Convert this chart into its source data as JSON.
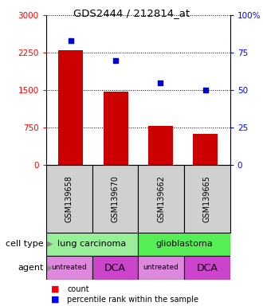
{
  "title": "GDS2444 / 212814_at",
  "samples": [
    "GSM139658",
    "GSM139670",
    "GSM139662",
    "GSM139665"
  ],
  "counts": [
    2300,
    1480,
    780,
    620
  ],
  "percentile_ranks": [
    83,
    70,
    55,
    50
  ],
  "ylim_left": [
    0,
    3000
  ],
  "ylim_right": [
    0,
    100
  ],
  "yticks_left": [
    0,
    750,
    1500,
    2250,
    3000
  ],
  "yticks_right": [
    0,
    25,
    50,
    75,
    100
  ],
  "ytick_labels_right": [
    "0",
    "25",
    "50",
    "75",
    "100%"
  ],
  "bar_color": "#cc0000",
  "dot_color": "#0000cc",
  "bar_width": 0.55,
  "agents": [
    "untreated",
    "DCA",
    "untreated",
    "DCA"
  ],
  "agent_color_untreated": "#dd88dd",
  "agent_color_DCA": "#cc44cc",
  "ct_color_lung": "#99ee99",
  "ct_color_glio": "#55ee55",
  "label_row1": "cell type",
  "label_row2": "agent",
  "legend_count_label": "count",
  "legend_pct_label": "percentile rank within the sample",
  "sample_box_color": "#d0d0d0",
  "left_label_color": "#888888"
}
